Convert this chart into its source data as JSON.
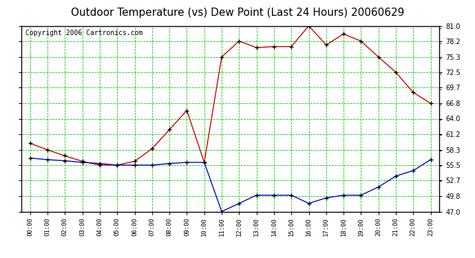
{
  "title": "Outdoor Temperature (vs) Dew Point (Last 24 Hours) 20060629",
  "copyright": "Copyright 2006 Cartronics.com",
  "x_labels": [
    "00:00",
    "01:00",
    "02:00",
    "03:00",
    "04:00",
    "05:00",
    "06:00",
    "07:00",
    "08:00",
    "09:00",
    "10:00",
    "11:00",
    "12:00",
    "13:00",
    "14:00",
    "15:00",
    "16:00",
    "17:00",
    "18:00",
    "19:00",
    "20:00",
    "21:00",
    "22:00",
    "23:00"
  ],
  "temp_data": [
    59.5,
    58.3,
    57.2,
    56.2,
    55.5,
    55.5,
    56.2,
    58.5,
    62.0,
    65.5,
    56.0,
    75.3,
    78.2,
    77.0,
    77.2,
    77.2,
    81.0,
    77.5,
    79.5,
    78.2,
    75.3,
    72.5,
    68.8,
    66.8
  ],
  "dew_data": [
    56.8,
    56.5,
    56.3,
    56.0,
    55.8,
    55.5,
    55.5,
    55.5,
    55.8,
    56.0,
    56.0,
    47.0,
    48.5,
    50.0,
    50.0,
    50.0,
    48.5,
    49.5,
    50.0,
    50.0,
    51.5,
    53.5,
    54.5,
    56.5
  ],
  "ylim": [
    47.0,
    81.0
  ],
  "yticks": [
    47.0,
    49.8,
    52.7,
    55.5,
    58.3,
    61.2,
    64.0,
    66.8,
    69.7,
    72.5,
    75.3,
    78.2,
    81.0
  ],
  "temp_color": "#cc0000",
  "dew_color": "#0000cc",
  "grid_color": "#00cc00",
  "bg_color": "#ffffff",
  "title_fontsize": 11,
  "copyright_fontsize": 7,
  "marker": "+",
  "markersize": 4,
  "linewidth": 1.0
}
